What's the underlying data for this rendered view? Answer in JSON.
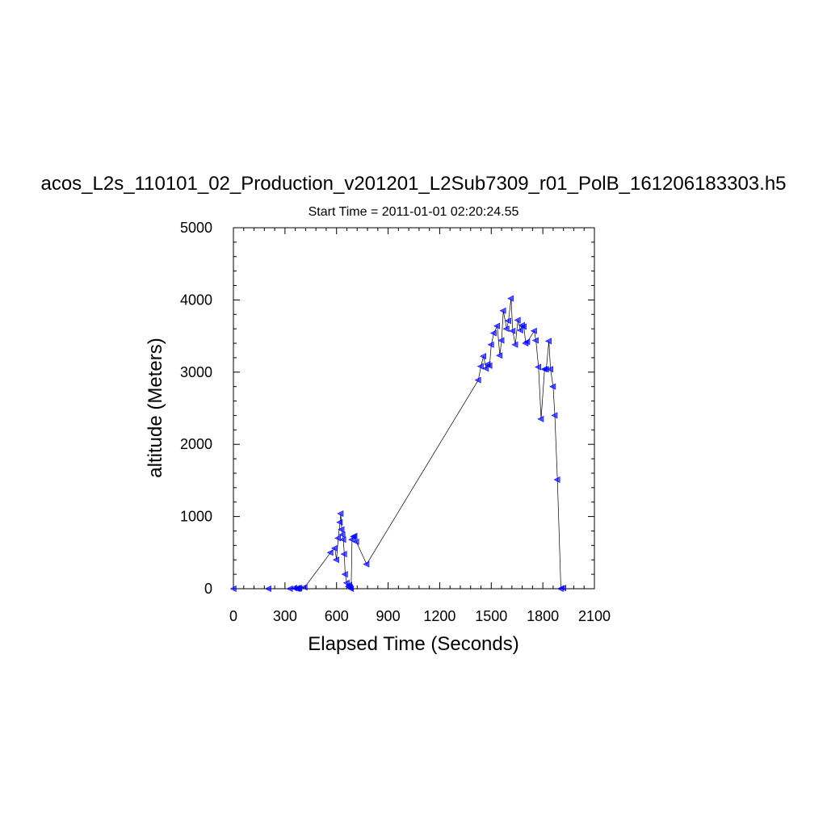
{
  "chart_data": {
    "type": "line",
    "title": "acos_L2s_110101_02_Production_v201201_L2Sub7309_r01_PolB_161206183303.h5",
    "subtitle": "Start Time = 2011-01-01 02:20:24.55",
    "xlabel": "Elapsed Time (Seconds)",
    "ylabel": "altitude (Meters)",
    "xlim": [
      0,
      2100
    ],
    "ylim": [
      0,
      5000
    ],
    "xticks": [
      0,
      300,
      600,
      900,
      1200,
      1500,
      1800,
      2100
    ],
    "yticks": [
      0,
      1000,
      2000,
      3000,
      4000,
      5000
    ],
    "grid": false,
    "legend": "none",
    "line_color": "#000000",
    "marker_color": "#0000ff",
    "marker": "left-triangle",
    "series": [
      {
        "x": [
          2,
          205,
          330,
          355,
          370,
          375,
          380,
          385,
          415,
          565,
          590,
          600,
          610,
          620,
          625,
          630,
          635,
          640,
          645,
          650,
          660,
          670,
          675,
          680,
          685,
          690,
          700,
          705,
          715,
          775,
          1425,
          1440,
          1455,
          1470,
          1480,
          1490,
          1500,
          1515,
          1535,
          1550,
          1560,
          1570,
          1590,
          1600,
          1615,
          1625,
          1640,
          1655,
          1670,
          1680,
          1690,
          1700,
          1710,
          1750,
          1760,
          1775,
          1790,
          1810,
          1820,
          1835,
          1845,
          1860,
          1870,
          1885,
          1905,
          1920
        ],
        "y": [
          0,
          0,
          0,
          10,
          0,
          10,
          0,
          10,
          20,
          500,
          560,
          400,
          700,
          920,
          1040,
          820,
          750,
          680,
          480,
          200,
          80,
          30,
          50,
          20,
          0,
          680,
          720,
          730,
          650,
          340,
          2890,
          3080,
          3220,
          3050,
          3110,
          3090,
          3380,
          3540,
          3640,
          3230,
          3440,
          3850,
          3600,
          3710,
          4020,
          3570,
          3380,
          3720,
          3580,
          3650,
          3630,
          3400,
          3420,
          3570,
          3440,
          3070,
          2350,
          3040,
          3040,
          3430,
          3040,
          2800,
          2400,
          1510,
          0,
          10
        ]
      }
    ]
  }
}
